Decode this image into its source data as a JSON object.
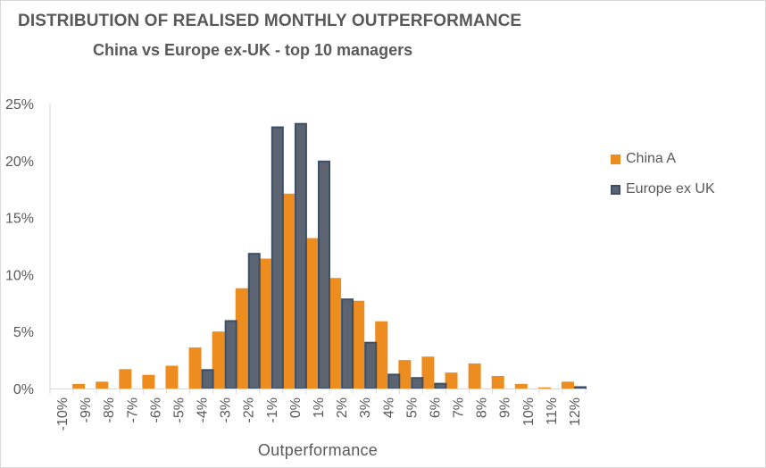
{
  "chart_data": {
    "type": "bar",
    "title": "DISTRIBUTION OF REALISED MONTHLY OUTPERFORMANCE",
    "subtitle": "China vs Europe ex-UK - top 10 managers",
    "xlabel": "Outperformance",
    "ylabel": "",
    "ylim": [
      0,
      0.25
    ],
    "yticks": [
      "0%",
      "5%",
      "10%",
      "15%",
      "20%",
      "25%"
    ],
    "ytick_values": [
      0,
      0.05,
      0.1,
      0.15,
      0.2,
      0.25
    ],
    "categories": [
      "-10%",
      "-9%",
      "-8%",
      "-7%",
      "-6%",
      "-5%",
      "-4%",
      "-3%",
      "-2%",
      "-1%",
      "0%",
      "1%",
      "2%",
      "3%",
      "4%",
      "5%",
      "6%",
      "7%",
      "8%",
      "9%",
      "10%",
      "11%",
      "12%"
    ],
    "series": [
      {
        "name": "China A",
        "color": "#ed8c1f",
        "values": [
          0,
          0.004,
          0.006,
          0.017,
          0.012,
          0.02,
          0.036,
          0.05,
          0.088,
          0.114,
          0.171,
          0.132,
          0.097,
          0.077,
          0.059,
          0.025,
          0.028,
          0.014,
          0.022,
          0.011,
          0.004,
          0.001,
          0.006
        ]
      },
      {
        "name": "Europe ex UK",
        "color": "#5b6470",
        "border": "#3d4f66",
        "values": [
          0,
          0,
          0,
          0,
          0,
          0,
          0.017,
          0.06,
          0.119,
          0.23,
          0.233,
          0.2,
          0.079,
          0.041,
          0.013,
          0.01,
          0.005,
          0,
          0,
          0,
          0,
          0,
          0.002
        ]
      }
    ],
    "grid": false,
    "legend_position": "right"
  }
}
